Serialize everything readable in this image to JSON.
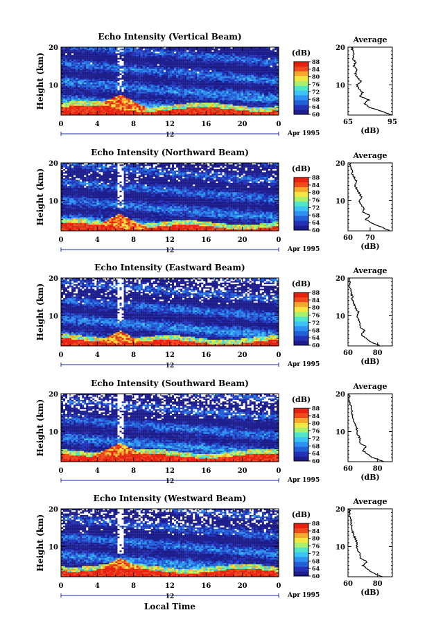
{
  "figure": {
    "xlabel": "Local Time",
    "xticks": [
      "0",
      "4",
      "8",
      "12",
      "16",
      "20",
      "0"
    ],
    "date_marker": "12",
    "date_label": "Apr 1995",
    "height_ticks": [
      "20",
      "10"
    ],
    "ylabel": "Height (km)",
    "colorbar_unit": "(dB)",
    "colorbar_ticks": [
      "88",
      "84",
      "80",
      "76",
      "72",
      "68",
      "64",
      "60"
    ],
    "avg_title": "Average",
    "avg_xlabel": "(dB)"
  },
  "colors": {
    "colormap": [
      "#1c1c8c",
      "#2233b8",
      "#2260d8",
      "#2e90f0",
      "#3cc4f4",
      "#50e6c8",
      "#aaf06a",
      "#f4e640",
      "#f4a82c",
      "#ee4a1c",
      "#e82010"
    ],
    "no_data": "#ffffff",
    "date_marker": "#1a2aa8"
  },
  "chart_data": [
    {
      "type": "heatmap",
      "title": "Echo Intensity (Vertical Beam)",
      "x_unit": "hours, local time",
      "xlim": [
        0,
        24
      ],
      "ylim": [
        2,
        20
      ],
      "zlim": [
        60,
        88
      ],
      "features": {
        "surface_layer_top_km": 3.5,
        "convective_peak_hour": 6.5,
        "convective_peak_km": 7.5,
        "missing_fraction_upper": 0.02
      },
      "average_profile": {
        "xticks": [
          "65",
          "95"
        ],
        "xlim": [
          65,
          95
        ],
        "height_km": [
          2,
          3,
          4,
          5,
          6,
          7,
          8,
          9,
          10,
          11,
          12,
          13,
          14,
          15,
          16,
          17,
          18,
          19,
          20
        ],
        "db": [
          95,
          88,
          80,
          76,
          79,
          73,
          75,
          72,
          71,
          74,
          71,
          70,
          71,
          69,
          70,
          68,
          69,
          68,
          68
        ]
      }
    },
    {
      "type": "heatmap",
      "title": "Echo Intensity (Northward Beam)",
      "x_unit": "hours, local time",
      "xlim": [
        0,
        24
      ],
      "ylim": [
        2,
        20
      ],
      "zlim": [
        60,
        88
      ],
      "features": {
        "surface_layer_top_km": 3.0,
        "convective_peak_hour": 6.5,
        "convective_peak_km": 6.5,
        "missing_fraction_upper": 0.15
      },
      "average_profile": {
        "xticks": [
          "60",
          "70"
        ],
        "xlim": [
          60,
          80
        ],
        "height_km": [
          2,
          3,
          4,
          5,
          6,
          7,
          8,
          9,
          10,
          11,
          12,
          13,
          14,
          15,
          16,
          17,
          18,
          19,
          20
        ],
        "db": [
          79,
          75,
          71,
          68,
          70,
          67,
          67,
          66,
          65,
          66,
          65,
          64,
          63,
          64,
          63,
          62,
          62,
          61,
          61
        ]
      }
    },
    {
      "type": "heatmap",
      "title": "Echo Intensity (Eastward Beam)",
      "x_unit": "hours, local time",
      "xlim": [
        0,
        24
      ],
      "ylim": [
        2,
        20
      ],
      "zlim": [
        60,
        88
      ],
      "features": {
        "surface_layer_top_km": 3.0,
        "convective_peak_hour": 6.5,
        "convective_peak_km": 6.0,
        "missing_fraction_upper": 0.28
      },
      "average_profile": {
        "xticks": [
          "60",
          "80"
        ],
        "xlim": [
          60,
          90
        ],
        "height_km": [
          2,
          3,
          4,
          5,
          6,
          7,
          8,
          9,
          10,
          11,
          12,
          13,
          14,
          15,
          16,
          17,
          18,
          19,
          20
        ],
        "db": [
          82,
          76,
          72,
          69,
          71,
          68,
          68,
          67,
          66,
          67,
          65,
          64,
          63,
          63,
          62,
          62,
          61,
          61,
          61
        ]
      }
    },
    {
      "type": "heatmap",
      "title": "Echo Intensity (Southward Beam)",
      "x_unit": "hours, local time",
      "xlim": [
        0,
        24
      ],
      "ylim": [
        2,
        20
      ],
      "zlim": [
        60,
        88
      ],
      "features": {
        "surface_layer_top_km": 3.5,
        "convective_peak_hour": 6.5,
        "convective_peak_km": 7.0,
        "missing_fraction_upper": 0.3
      },
      "average_profile": {
        "xticks": [
          "60",
          "80"
        ],
        "xlim": [
          60,
          90
        ],
        "height_km": [
          2,
          3,
          4,
          5,
          6,
          7,
          8,
          9,
          10,
          11,
          12,
          13,
          14,
          15,
          16,
          17,
          18,
          19,
          20
        ],
        "db": [
          84,
          77,
          73,
          70,
          72,
          68,
          68,
          67,
          66,
          66,
          65,
          64,
          63,
          63,
          62,
          62,
          61,
          61,
          61
        ]
      }
    },
    {
      "type": "heatmap",
      "title": "Echo Intensity (Westward Beam)",
      "x_unit": "hours, local time",
      "xlim": [
        0,
        24
      ],
      "ylim": [
        2,
        20
      ],
      "zlim": [
        60,
        88
      ],
      "features": {
        "surface_layer_top_km": 3.5,
        "convective_peak_hour": 6.5,
        "convective_peak_km": 7.0,
        "missing_fraction_upper": 0.26
      },
      "average_profile": {
        "xticks": [
          "60",
          "80"
        ],
        "xlim": [
          60,
          90
        ],
        "height_km": [
          2,
          3,
          4,
          5,
          6,
          7,
          8,
          9,
          10,
          11,
          12,
          13,
          14,
          15,
          16,
          17,
          18,
          19,
          20
        ],
        "db": [
          83,
          77,
          73,
          70,
          73,
          68,
          68,
          67,
          66,
          66,
          65,
          64,
          63,
          63,
          62,
          62,
          61,
          61,
          61
        ]
      }
    }
  ]
}
